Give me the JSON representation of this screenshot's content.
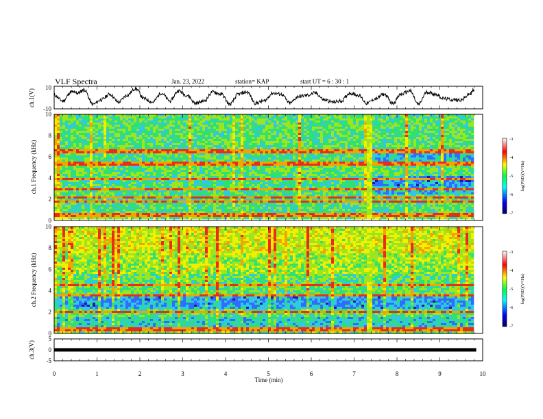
{
  "header": {
    "title": "VLF Spectra",
    "date": "Jan. 23, 2022",
    "station": "station= KAP",
    "start": "start  UT =   6  : 30 : 1"
  },
  "colors": {
    "background": "#ffffff",
    "axis": "#000000",
    "waveform": "#000000",
    "spectrum_palette": [
      "#1a1aa8",
      "#2f6dff",
      "#30c8e8",
      "#30e070",
      "#9be61e",
      "#f2f000",
      "#f4a300",
      "#ea2c1c"
    ]
  },
  "chart_data": [
    {
      "type": "line",
      "panel": "ch1-waveform",
      "ylabel": "ch.1(V)",
      "ylim": [
        -10,
        10
      ],
      "yticklabels": [
        "10",
        "-10"
      ],
      "xlim": [
        0,
        10
      ],
      "series": [
        {
          "x": [
            0,
            0.2,
            0.4,
            0.55,
            0.7,
            0.9,
            1.1,
            1.3,
            1.5,
            1.7,
            1.9,
            2.1,
            2.3,
            2.5,
            2.7,
            2.9,
            3.1,
            3.3,
            3.5,
            3.7,
            3.9,
            4.1,
            4.3,
            4.5,
            4.7,
            4.9,
            5.1,
            5.3,
            5.5,
            5.7,
            5.9,
            6.1,
            6.3,
            6.5,
            6.7,
            6.9,
            7.1,
            7.3,
            7.5,
            7.7,
            7.9,
            8.1,
            8.3,
            8.5,
            8.7,
            8.9,
            9.1,
            9.3,
            9.5,
            9.7,
            9.8
          ],
          "values": [
            2,
            -3,
            5,
            4,
            7,
            -6,
            -2,
            3,
            -4,
            2,
            8,
            -1,
            -4,
            4,
            -3,
            6,
            2,
            -5,
            -3,
            5,
            3,
            -6,
            3,
            5,
            -5,
            -3,
            4,
            3,
            -5,
            1,
            2,
            4,
            -2,
            -4,
            -3,
            4,
            2,
            -5,
            -1,
            3,
            -5,
            3,
            6,
            -6,
            5,
            3,
            -1,
            -2,
            -2,
            3,
            7
          ]
        }
      ]
    },
    {
      "type": "heatmap",
      "panel": "ch1-spectrogram",
      "ylabel": "ch.1 Frequency (kHz)",
      "ylim": [
        0,
        10
      ],
      "yticklabels": [
        "0",
        "2",
        "4",
        "6",
        "8",
        "10"
      ],
      "xlim": [
        0,
        9.85
      ],
      "colorbar": {
        "label": "log(PSD)(V²/Hz)",
        "range": [
          -7,
          -3
        ],
        "ticklabels": [
          "-3",
          "-4",
          "-5",
          "-6",
          "-7"
        ]
      },
      "lines_khz": [
        0.5,
        1.8,
        2.1,
        3.0,
        3.9,
        5.2,
        5.5,
        6.5
      ],
      "regime_change_min": 7.35
    },
    {
      "type": "heatmap",
      "panel": "ch2-spectrogram",
      "ylabel": "ch.2 Frequency (kHz)",
      "ylim": [
        0,
        10
      ],
      "yticklabels": [
        "0",
        "2",
        "4",
        "6",
        "8",
        "10"
      ],
      "xlim": [
        0,
        9.85
      ],
      "colorbar": {
        "label": "log(PSD)(V²/Hz)",
        "range": [
          -7,
          -3
        ],
        "ticklabels": [
          "-3",
          "-4",
          "-5",
          "-6",
          "-7"
        ]
      },
      "lines_khz": [
        0.4,
        2.0,
        3.5,
        4.5
      ],
      "regime_change_min": 7.35
    },
    {
      "type": "line",
      "panel": "ch3-waveform",
      "ylabel": "ch.3(V)",
      "ylim": [
        -5,
        5
      ],
      "yticklabels": [
        "5",
        "0",
        "-5"
      ],
      "xlim": [
        0,
        10
      ],
      "series": [
        {
          "x": [
            0,
            9.85
          ],
          "values": [
            0,
            0
          ]
        }
      ]
    }
  ],
  "xaxis": {
    "label": "Time  (min)",
    "ticklabels": [
      "0",
      "1",
      "2",
      "3",
      "4",
      "5",
      "6",
      "7",
      "8",
      "9",
      "10"
    ]
  }
}
